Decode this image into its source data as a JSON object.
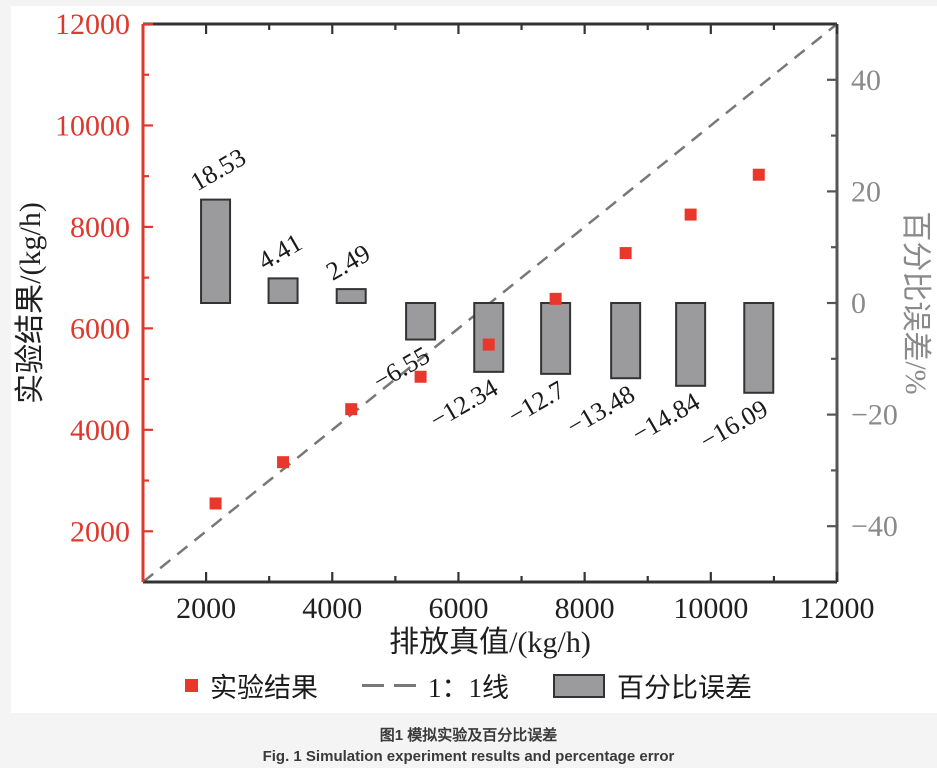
{
  "figure": {
    "caption_zh": "图1  模拟实验及百分比误差",
    "caption_en": "Fig. 1  Simulation experiment results and percentage error"
  },
  "legend": {
    "experiment": "实验结果",
    "line11": "1：1线",
    "percent_error": "百分比误差"
  },
  "chart_data": {
    "type": "combo",
    "subtypes": [
      "scatter",
      "line",
      "bar"
    ],
    "x_axis": {
      "label": "排放真值/(kg/h)",
      "min": 1000,
      "max": 12000,
      "major_ticks": [
        2000,
        4000,
        6000,
        8000,
        10000,
        12000
      ],
      "tick_labels": [
        "2000",
        "4000",
        "6000",
        "8000",
        "10000",
        "12000"
      ],
      "minor_step": 1000
    },
    "y_left": {
      "label": "实验结果/(kg/h)",
      "min": 1000,
      "max": 12000,
      "major_ticks": [
        2000,
        4000,
        6000,
        8000,
        10000,
        12000
      ],
      "tick_labels": [
        "2000",
        "4000",
        "6000",
        "8000",
        "10000",
        "12000"
      ],
      "minor_step": 1000,
      "color": "#df392e"
    },
    "y_right": {
      "label": "百分比误差/%",
      "min": -50,
      "max": 50,
      "major_ticks": [
        40,
        20,
        0,
        -20,
        -40
      ],
      "tick_labels": [
        "40",
        "20",
        "0",
        "−20",
        "−40"
      ],
      "minor_ticks": [
        30,
        10,
        -10,
        -30
      ],
      "color": "#8a8a8a"
    },
    "grid": false,
    "legend_position": "bottom",
    "series": [
      {
        "name": "实验结果",
        "type": "scatter",
        "marker": "square",
        "color": "#ea372c",
        "x": [
          2150,
          3220,
          4300,
          5400,
          6480,
          7540,
          8650,
          9680,
          10760
        ],
        "y": [
          2548,
          3362,
          4407,
          5046,
          5680,
          6582,
          7484,
          8243,
          9029
        ]
      },
      {
        "name": "1：1线",
        "type": "line",
        "style": "dashed",
        "color": "#787878",
        "from": [
          1000,
          1000
        ],
        "to": [
          12000,
          12000
        ]
      },
      {
        "name": "百分比误差",
        "type": "bar",
        "axis": "right",
        "color": "#9b9b9d",
        "edge_color": "#333333",
        "x": [
          2150,
          3220,
          4300,
          5400,
          6480,
          7540,
          8650,
          9680,
          10760
        ],
        "values": [
          18.53,
          4.41,
          2.49,
          -6.55,
          -12.34,
          -12.7,
          -13.48,
          -14.84,
          -16.09
        ],
        "labels": [
          "18.53",
          "4.41",
          "2.49",
          "−6.55",
          "−12.34",
          "−12.7",
          "−13.48",
          "−14.84",
          "−16.09"
        ]
      }
    ]
  }
}
